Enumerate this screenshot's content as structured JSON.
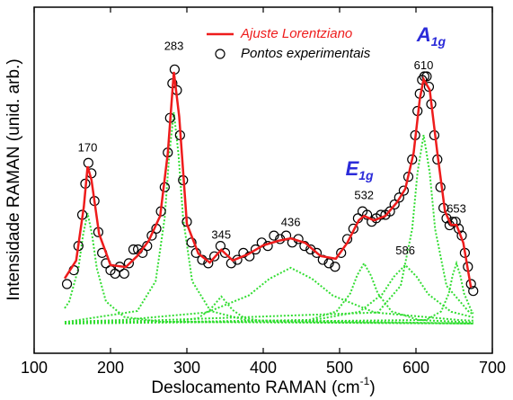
{
  "chart_data": {
    "type": "line",
    "xlabel": {
      "text": "Deslocamento RAMAN (cm",
      "sup": "-1",
      "tail": ")"
    },
    "ylabel": "Intensidade RAMAN (unid. arb.)",
    "xlim": [
      100,
      700
    ],
    "xticks": [
      100,
      200,
      300,
      400,
      500,
      600,
      700
    ],
    "ylim": [
      0,
      100
    ],
    "legend": "upper center",
    "series": [
      {
        "name": "Ajuste Lorentziano",
        "type": "line",
        "color": "#ee1c1c",
        "x": [
          140,
          155,
          165,
          170,
          175,
          185,
          200,
          220,
          235,
          250,
          265,
          275,
          283,
          290,
          300,
          315,
          330,
          345,
          360,
          380,
          400,
          420,
          436,
          455,
          475,
          495,
          510,
          525,
          532,
          545,
          560,
          575,
          586,
          597,
          605,
          610,
          618,
          628,
          638,
          646,
          653,
          662,
          672
        ],
        "values": [
          21.6,
          26.8,
          42.3,
          54.0,
          50.1,
          34.5,
          25.5,
          24.9,
          28.1,
          32.5,
          39.7,
          57.9,
          81.3,
          68.3,
          37.4,
          28.8,
          26.2,
          29.9,
          26.8,
          28.6,
          31.2,
          32.5,
          33.2,
          31.9,
          28.1,
          27.3,
          31.9,
          38.4,
          39.7,
          38.4,
          39.7,
          43.6,
          47.5,
          57.9,
          73.5,
          79.2,
          76.1,
          57.9,
          41.0,
          37.1,
          37.1,
          31.9,
          19.0
        ]
      },
      {
        "name": "Pontos experimentais",
        "type": "scatter",
        "color": "#000000",
        "x": [
          143,
          152,
          158,
          163,
          167,
          171,
          175,
          179,
          184,
          189,
          194,
          200,
          206,
          212,
          218,
          224,
          230,
          236,
          242,
          248,
          254,
          260,
          266,
          271,
          275,
          278,
          281,
          284,
          287,
          291,
          295,
          300,
          306,
          312,
          320,
          328,
          336,
          344,
          350,
          358,
          366,
          374,
          382,
          390,
          398,
          406,
          414,
          422,
          430,
          438,
          446,
          454,
          462,
          470,
          478,
          486,
          494,
          502,
          510,
          518,
          524,
          530,
          536,
          542,
          548,
          554,
          560,
          566,
          572,
          578,
          584,
          590,
          595,
          599,
          602,
          605,
          608,
          611,
          614,
          617,
          620,
          624,
          628,
          632,
          636,
          640,
          644,
          648,
          652,
          656,
          660,
          664,
          668,
          672,
          675
        ],
        "values": [
          20,
          24,
          31,
          40,
          49,
          55,
          52,
          44,
          35,
          29,
          26,
          24,
          23,
          25,
          23,
          26,
          30,
          30,
          29,
          31,
          34,
          36,
          41,
          48,
          58,
          68,
          78,
          82,
          76,
          63,
          50,
          38,
          32,
          29,
          27,
          26,
          28,
          31,
          29,
          26,
          27,
          29,
          28,
          30,
          32,
          31,
          34,
          33,
          34,
          32,
          33,
          31,
          30,
          29,
          27,
          26,
          25,
          29,
          33,
          36,
          39,
          41,
          40,
          38,
          39,
          40,
          40,
          41,
          43,
          45,
          47,
          51,
          56,
          63,
          70,
          75,
          79,
          80,
          80,
          77,
          72,
          63,
          56,
          48,
          42,
          39,
          37,
          38,
          38,
          36,
          34,
          29,
          25,
          20,
          18
        ]
      }
    ],
    "components": {
      "color": "#33dd33",
      "curves": [
        {
          "x": [
            140,
            146,
            158,
            164,
            170,
            176,
            182,
            194,
            218,
            266,
            675
          ],
          "values": [
            13.0,
            15.0,
            24.6,
            34.1,
            40.5,
            34.1,
            24.6,
            15.0,
            10.5,
            9.1,
            8.6
          ]
        },
        {
          "x": [
            140,
            235,
            259,
            271,
            277,
            283,
            289,
            295,
            307,
            331,
            379,
            675
          ],
          "values": [
            9.0,
            12.2,
            20.8,
            39.1,
            57.4,
            69.6,
            57.4,
            39.1,
            20.8,
            12.2,
            9.5,
            8.6
          ]
        },
        {
          "x": [
            140,
            285,
            315,
            330,
            345,
            360,
            375,
            405,
            675
          ],
          "values": [
            8.6,
            9.1,
            10.2,
            12.5,
            16.4,
            12.5,
            10.2,
            9.1,
            8.6
          ]
        },
        {
          "x": [
            140,
            216,
            326,
            381,
            408,
            436,
            464,
            491,
            546,
            656,
            675
          ],
          "values": [
            9.1,
            9.6,
            11.8,
            16.7,
            21.5,
            24.7,
            21.5,
            16.7,
            11.8,
            9.6,
            9.4
          ]
        },
        {
          "x": [
            140,
            460,
            496,
            514,
            523,
            532,
            541,
            550,
            568,
            604,
            675
          ],
          "values": [
            8.6,
            9.6,
            12.1,
            17.3,
            22.5,
            26.0,
            22.5,
            17.3,
            12.1,
            9.6,
            8.9
          ]
        },
        {
          "x": [
            140,
            466,
            526,
            556,
            571,
            586,
            601,
            616,
            646,
            675
          ],
          "values": [
            8.6,
            9.6,
            12.0,
            17.1,
            22.1,
            25.5,
            22.1,
            17.1,
            12.0,
            10.4
          ]
        },
        {
          "x": [
            140,
            550,
            580,
            595,
            602,
            610,
            618,
            625,
            640,
            670,
            675
          ],
          "values": [
            8.6,
            11.8,
            19.5,
            35.9,
            52.2,
            63.1,
            52.2,
            35.9,
            19.5,
            11.8,
            11.4
          ]
        },
        {
          "x": [
            140,
            613,
            633,
            643,
            648,
            653,
            658,
            663,
            673,
            675
          ],
          "values": [
            8.6,
            9.6,
            12.1,
            17.3,
            22.5,
            26.0,
            22.5,
            17.3,
            12.1,
            11.5
          ]
        }
      ]
    },
    "annotations": [
      {
        "text": "170",
        "x": 170,
        "y": 59.2
      },
      {
        "text": "283",
        "x": 283,
        "y": 88.6
      },
      {
        "text": "345",
        "x": 345,
        "y": 34.0
      },
      {
        "text": "436",
        "x": 436,
        "y": 37.7
      },
      {
        "text": "532",
        "x": 532,
        "y": 45.5
      },
      {
        "text": "586",
        "x": 586,
        "y": 29.4
      },
      {
        "text": "610",
        "x": 610,
        "y": 83.0
      },
      {
        "text": "653",
        "x": 653,
        "y": 41.6
      },
      {
        "text": "E",
        "sub": "1g",
        "x": 526,
        "y": 53.0,
        "color": "#2b2bd9"
      },
      {
        "text": "A",
        "sub": "1g",
        "x": 620,
        "y": 91.7,
        "color": "#2b2bd9"
      }
    ]
  }
}
